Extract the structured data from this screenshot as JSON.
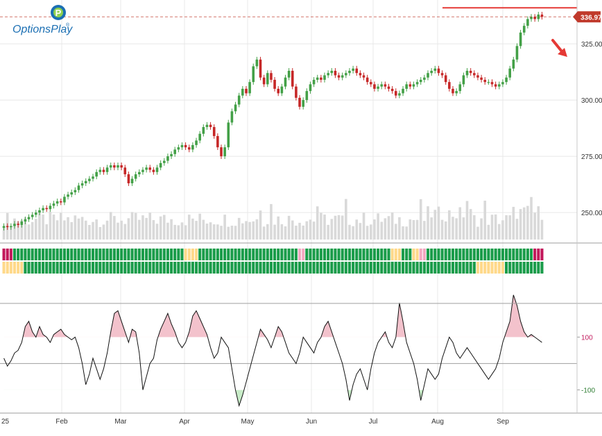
{
  "logo": {
    "text": "OptionsPlay",
    "trademark": "®"
  },
  "colors": {
    "up": "#43a047",
    "down": "#c62828",
    "volume": "#d9d9d9",
    "grid": "#e8e8e8",
    "resistance": "#e53935",
    "last_price": "#c0392b",
    "cci_line": "#111111",
    "cci_over": "#f3c2cc",
    "cci_under": "#c8ecc8",
    "ribbon_green": "#1a9c4a",
    "ribbon_yellow": "#ffd98a",
    "ribbon_red": "#c2185b",
    "ribbon_pink": "#f4a7c0",
    "arrow": "#e53935"
  },
  "chart_data": [
    {
      "type": "candlestick",
      "title": "",
      "x_labels": [
        "25",
        "Feb",
        "Mar",
        "Apr",
        "May",
        "Jun",
        "Jul",
        "Aug",
        "Sep"
      ],
      "y_ticks": [
        250,
        275,
        300,
        325
      ],
      "ylim": [
        238,
        342
      ],
      "last_price": 336.97,
      "last_price_label": "336.97",
      "resistance_level": 341,
      "grid": true,
      "closes": [
        244,
        243.5,
        244,
        245,
        244.5,
        246,
        247,
        248,
        249,
        250,
        251,
        252,
        251.5,
        253,
        254,
        255,
        254.5,
        257,
        258,
        259,
        260,
        262,
        263,
        264,
        265,
        266,
        268,
        269,
        268,
        270,
        271,
        270,
        271,
        270,
        267,
        263,
        265,
        267,
        268,
        269,
        270,
        269,
        268,
        270,
        272,
        273,
        275,
        276,
        278,
        279,
        280,
        279,
        278,
        280,
        282,
        285,
        288,
        289,
        288,
        284,
        279,
        275,
        279,
        290,
        295,
        298,
        302,
        305,
        303,
        308,
        315,
        318,
        310,
        307,
        312,
        309,
        305,
        303,
        306,
        310,
        313,
        306,
        301,
        297,
        300,
        304,
        307,
        309,
        310,
        309,
        311,
        312,
        313,
        311,
        310,
        311,
        312,
        313,
        314,
        312,
        311,
        310,
        308,
        307,
        305,
        306,
        307,
        306,
        305,
        304,
        302,
        303,
        305,
        307,
        306,
        307,
        308,
        309,
        310,
        312,
        313,
        314,
        312,
        311,
        308,
        305,
        303,
        304,
        307,
        311,
        313,
        312,
        311,
        310,
        309,
        308,
        308,
        307,
        306,
        307,
        308,
        310,
        314,
        318,
        324,
        330,
        333,
        336,
        337,
        336,
        338,
        336.97
      ]
    },
    {
      "type": "heatmap",
      "name": "signal ribbon",
      "row1": "RRRGGGGGGGGGGGGGGGGGGGGGGGGGGGGGGGGGGGGGGGGGGGGGGGGYYYYGGGGGGGGGGGGGGGGGGGGGGGGGGGGPPGGGGGGGGGGGGGGGGGGGGGGGGYYYGGGYYPPGGGGGGGGGGGGGGGGGGGGGGGGGGGGGGRRRRPPGGGGGGGGGGGGGGGGGGGGGRRRRGGGGGGRRRGGGGGGGGGGGGGGGGGGGG",
      "row2": "YYYYYYGGGGGGGGGGGGGGGGGGGGGGGGGGGGGGGGGGGGGGGGGGGGGGGGGGGGGGGGGGGGGGGGGGGGGGGGGGGGGGGGGGGGGGGGGGGGGGGGGGGGGGGGGGGGGGGGGGGGGGGGGGGGGGGYYYYYYYYGGGGGGGGGGGGGGGGGGGGGGGGYYYYGGGGGGGGGGGGGGGYYYYGGGGGGGGGGGGGGGGGGGGGGGGG"
    },
    {
      "type": "line",
      "name": "CCI",
      "y_ticks": [
        100,
        -100
      ],
      "tick_labels": [
        "100",
        "-100"
      ],
      "ylim": [
        -180,
        220
      ],
      "values": [
        20,
        -10,
        10,
        40,
        50,
        80,
        140,
        160,
        120,
        100,
        140,
        110,
        100,
        80,
        110,
        120,
        130,
        110,
        100,
        90,
        100,
        60,
        0,
        -80,
        -40,
        20,
        -20,
        -60,
        -20,
        40,
        120,
        190,
        200,
        160,
        120,
        80,
        130,
        120,
        40,
        -100,
        -50,
        0,
        20,
        90,
        130,
        160,
        190,
        150,
        120,
        80,
        60,
        80,
        120,
        180,
        200,
        170,
        140,
        110,
        60,
        20,
        40,
        100,
        80,
        60,
        -20,
        -100,
        -160,
        -120,
        -70,
        -20,
        30,
        80,
        130,
        110,
        90,
        60,
        100,
        140,
        120,
        80,
        40,
        20,
        0,
        40,
        100,
        80,
        60,
        40,
        80,
        100,
        140,
        160,
        120,
        80,
        40,
        0,
        -60,
        -140,
        -80,
        -40,
        -20,
        -60,
        -100,
        -20,
        40,
        80,
        100,
        120,
        80,
        60,
        100,
        230,
        160,
        80,
        40,
        0,
        -60,
        -140,
        -80,
        -20,
        -40,
        -60,
        -40,
        20,
        60,
        100,
        80,
        40,
        20,
        40,
        60,
        40,
        20,
        0,
        -20,
        -40,
        -60,
        -40,
        -20,
        20,
        80,
        120,
        160,
        260,
        220,
        160,
        120,
        100,
        110,
        100,
        90,
        80
      ]
    }
  ],
  "cci_labels": {
    "upper": "100",
    "lower": "-100"
  }
}
